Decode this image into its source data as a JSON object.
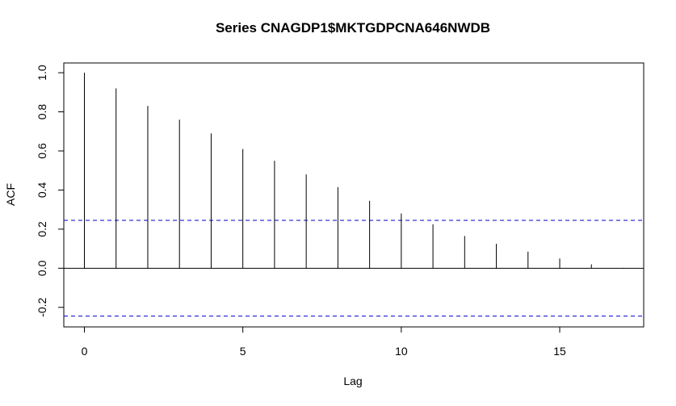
{
  "chart_data": {
    "type": "bar",
    "title": "Series  CNAGDP1$MKTGDPCNA646NWDB",
    "xlabel": "Lag",
    "ylabel": "ACF",
    "x": [
      0,
      1,
      2,
      3,
      4,
      5,
      6,
      7,
      8,
      9,
      10,
      11,
      12,
      13,
      14,
      15,
      16,
      17
    ],
    "values": [
      1.0,
      0.92,
      0.83,
      0.76,
      0.69,
      0.61,
      0.55,
      0.48,
      0.415,
      0.345,
      0.28,
      0.225,
      0.165,
      0.125,
      0.085,
      0.05,
      0.02,
      0.002
    ],
    "confidence_bound": 0.245,
    "xlim": [
      -0.65,
      17.65
    ],
    "ylim": [
      -0.3,
      1.05
    ],
    "x_ticks": [
      0,
      5,
      10,
      15
    ],
    "x_tick_labels": [
      "0",
      "5",
      "10",
      "15"
    ],
    "y_ticks": [
      -0.2,
      0.0,
      0.2,
      0.4,
      0.6,
      0.8,
      1.0
    ],
    "y_tick_labels": [
      "-0.2",
      "0.0",
      "0.2",
      "0.4",
      "0.6",
      "0.8",
      "1.0"
    ],
    "grid": false,
    "colors": {
      "bars": "#000000",
      "confidence": "#0000cc",
      "axis": "#000000"
    }
  }
}
